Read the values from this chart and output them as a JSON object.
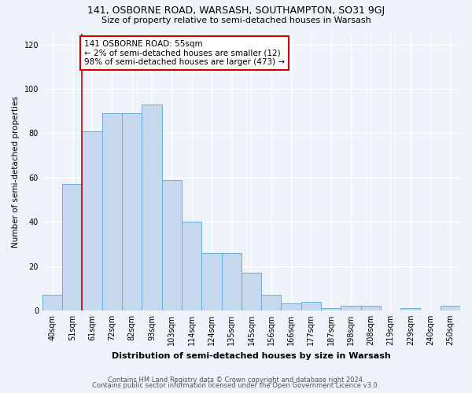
{
  "title": "141, OSBORNE ROAD, WARSASH, SOUTHAMPTON, SO31 9GJ",
  "subtitle": "Size of property relative to semi-detached houses in Warsash",
  "xlabel": "Distribution of semi-detached houses by size in Warsash",
  "ylabel": "Number of semi-detached properties",
  "footer_line1": "Contains HM Land Registry data © Crown copyright and database right 2024.",
  "footer_line2": "Contains public sector information licensed under the Open Government Licence v3.0.",
  "bar_labels": [
    "40sqm",
    "51sqm",
    "61sqm",
    "72sqm",
    "82sqm",
    "93sqm",
    "103sqm",
    "114sqm",
    "124sqm",
    "135sqm",
    "145sqm",
    "156sqm",
    "166sqm",
    "177sqm",
    "187sqm",
    "198sqm",
    "208sqm",
    "219sqm",
    "229sqm",
    "240sqm",
    "250sqm"
  ],
  "bar_heights": [
    7,
    57,
    81,
    89,
    89,
    93,
    59,
    40,
    26,
    26,
    17,
    7,
    3,
    4,
    1,
    2,
    2,
    0,
    1,
    0,
    2
  ],
  "bar_color": "#c5d8ee",
  "bar_edge_color": "#6aaed6",
  "vline_x_index": 1.5,
  "vline_color": "#cc0000",
  "annotation_title": "141 OSBORNE ROAD: 55sqm",
  "annotation_line1": "← 2% of semi-detached houses are smaller (12)",
  "annotation_line2": "98% of semi-detached houses are larger (473) →",
  "annotation_box_color": "#ffffff",
  "annotation_box_edge": "#cc0000",
  "ylim": [
    0,
    125
  ],
  "yticks": [
    0,
    20,
    40,
    60,
    80,
    100,
    120
  ],
  "background_color": "#eef2f9",
  "plot_bg_color": "#eef2f9",
  "grid_color": "#ffffff"
}
